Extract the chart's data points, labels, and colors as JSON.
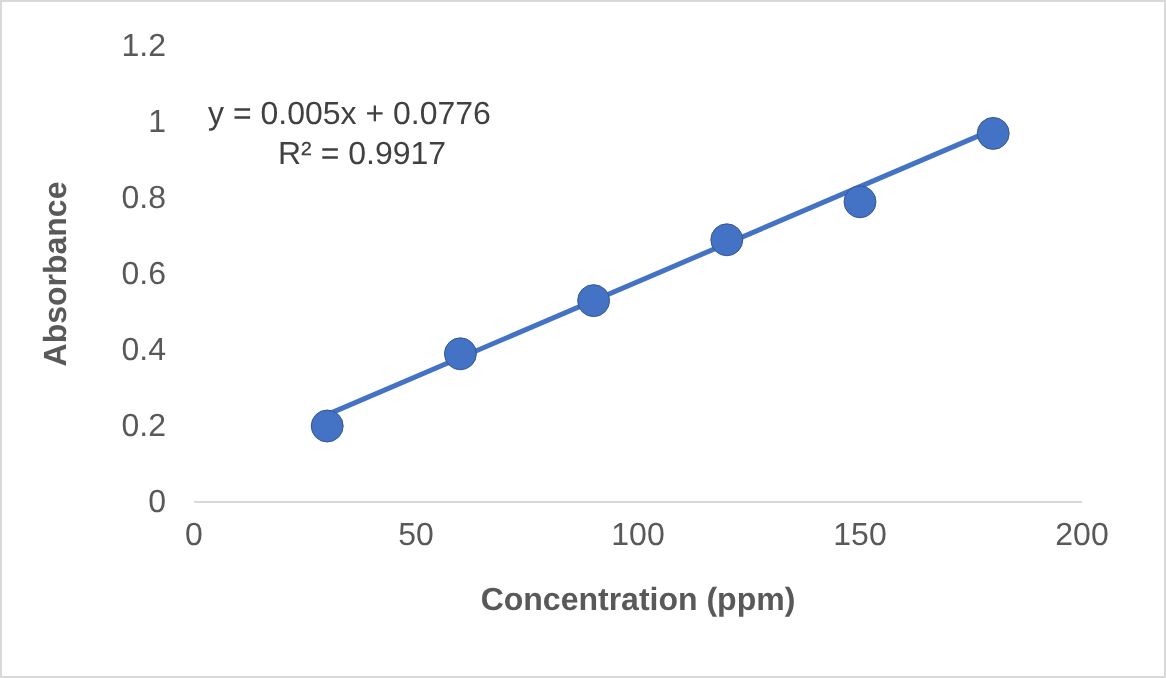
{
  "chart_data": {
    "type": "scatter",
    "xlabel": "Concentration (ppm)",
    "ylabel": "Absorbance",
    "x": [
      30,
      60,
      90,
      120,
      150,
      180
    ],
    "series": [
      {
        "color": "#4472c4",
        "values": [
          0.2,
          0.39,
          0.53,
          0.69,
          0.79,
          0.97
        ],
        "marker": "circle"
      },
      {
        "type": "line",
        "color": "#4472c4",
        "x": [
          30,
          180
        ],
        "values": [
          0.23,
          0.98
        ],
        "line_style": "solid"
      }
    ],
    "annotations": [
      "y = 0.005x + 0.0776",
      "R² = 0.9917"
    ],
    "xlim": [
      0,
      200
    ],
    "xticks": [
      0,
      50,
      100,
      150,
      200
    ],
    "ylim": [
      0,
      1.2
    ],
    "yticks": [
      0,
      0.2,
      0.4,
      0.6,
      0.8,
      1,
      1.2
    ],
    "grid": false
  }
}
